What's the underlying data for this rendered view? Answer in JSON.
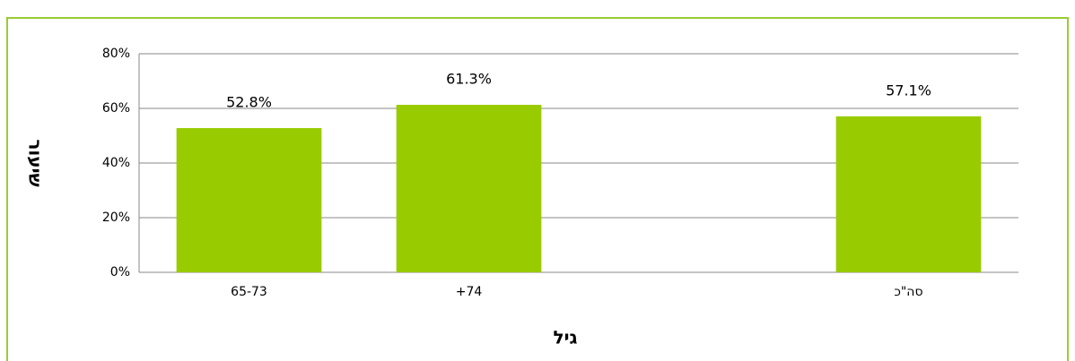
{
  "chart_data": {
    "type": "bar",
    "x_label": "גיל",
    "y_label": "שיעור",
    "categories": [
      "65-73",
      "74+",
      null,
      "סה\"כ"
    ],
    "values": [
      52.8,
      61.3,
      null,
      57.1
    ],
    "value_labels": [
      "52.8%",
      "61.3%",
      null,
      "57.1%"
    ],
    "color": "#99cc00",
    "ylim": [
      0,
      80
    ],
    "yticks": [
      {
        "value": 0,
        "label": "0%"
      },
      {
        "value": 20,
        "label": "20%"
      },
      {
        "value": 40,
        "label": "40%"
      },
      {
        "value": 60,
        "label": "60%"
      },
      {
        "value": 80,
        "label": "80%"
      }
    ],
    "grid": true
  }
}
